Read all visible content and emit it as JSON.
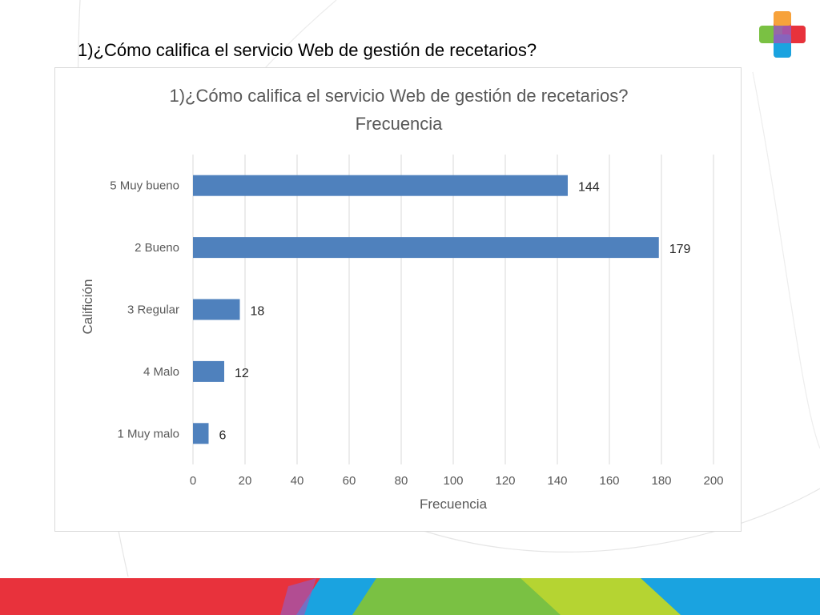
{
  "slide": {
    "title": "1)¿Cómo califica el servicio Web de gestión de recetarios?"
  },
  "colors": {
    "bar": "#4f81bd",
    "band_red": "#e8323c",
    "band_blue": "#1aa3e0",
    "band_green": "#7ac143",
    "band_lime": "#c4d82e"
  },
  "chart_data": {
    "type": "bar",
    "orientation": "horizontal",
    "title": "1)¿Cómo califica el servicio Web de gestión de recetarios?",
    "subtitle": "Frecuencia",
    "xlabel": "Frecuencia",
    "ylabel": "Califición",
    "categories": [
      "5 Muy bueno",
      "2 Bueno",
      "3 Regular",
      "4 Malo",
      "1 Muy malo"
    ],
    "values": [
      144,
      179,
      18,
      12,
      6
    ],
    "xlim": [
      0,
      200
    ],
    "xticks": [
      0,
      20,
      40,
      60,
      80,
      100,
      120,
      140,
      160,
      180,
      200
    ],
    "data_labels": [
      "144",
      "179",
      "18",
      "12",
      "6"
    ],
    "grid": "vertical",
    "legend": "none"
  }
}
